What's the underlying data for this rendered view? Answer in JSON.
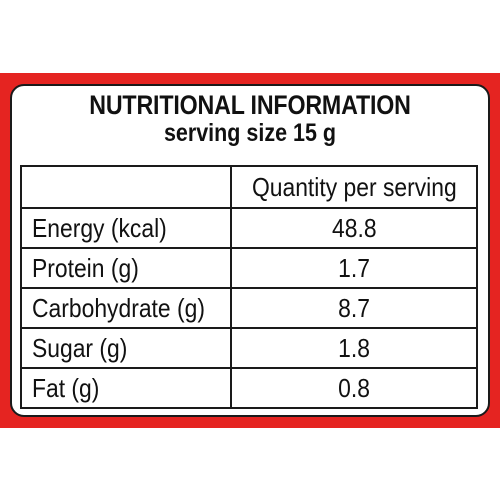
{
  "panel": {
    "title": "NUTRITIONAL INFORMATION",
    "subtitle": "serving size 15 g"
  },
  "table": {
    "columns": [
      "",
      "Quantity per serving"
    ],
    "rows": [
      {
        "nutrient": "Energy (kcal)",
        "quantity": "48.8"
      },
      {
        "nutrient": "Protein (g)",
        "quantity": "1.7"
      },
      {
        "nutrient": "Carbohydrate (g)",
        "quantity": "8.7"
      },
      {
        "nutrient": "Sugar (g)",
        "quantity": "1.8"
      },
      {
        "nutrient": "Fat (g)",
        "quantity": "0.8"
      }
    ]
  },
  "colors": {
    "band": "#e52421",
    "text": "#111111",
    "background": "#ffffff"
  }
}
